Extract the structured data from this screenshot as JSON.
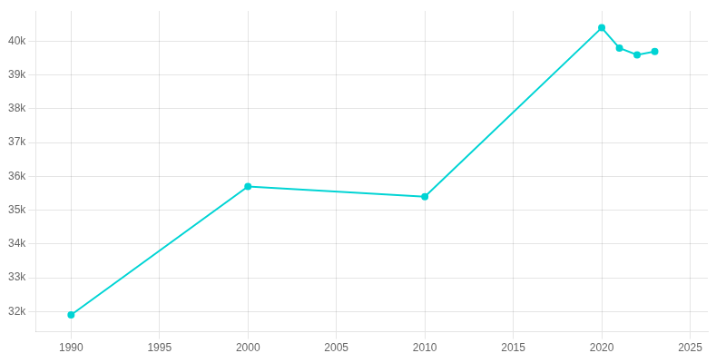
{
  "chart_data": {
    "type": "line",
    "x": [
      1990,
      2000,
      2010,
      2020,
      2021,
      2022,
      2023
    ],
    "values": [
      31900,
      35700,
      35400,
      40400,
      39800,
      39600,
      39700
    ],
    "color": "#00d4d4",
    "marker": "circle",
    "xlim": [
      1988,
      2026
    ],
    "xticks": [
      1990,
      1995,
      2000,
      2005,
      2010,
      2015,
      2020,
      2025
    ],
    "ylim": [
      31400,
      40900
    ],
    "yticks": [
      {
        "value": 32000,
        "label": "32k"
      },
      {
        "value": 33000,
        "label": "33k"
      },
      {
        "value": 34000,
        "label": "34k"
      },
      {
        "value": 35000,
        "label": "35k"
      },
      {
        "value": 36000,
        "label": "36k"
      },
      {
        "value": 37000,
        "label": "37k"
      },
      {
        "value": 38000,
        "label": "38k"
      },
      {
        "value": 39000,
        "label": "39k"
      },
      {
        "value": 40000,
        "label": "40k"
      }
    ],
    "grid": true
  }
}
